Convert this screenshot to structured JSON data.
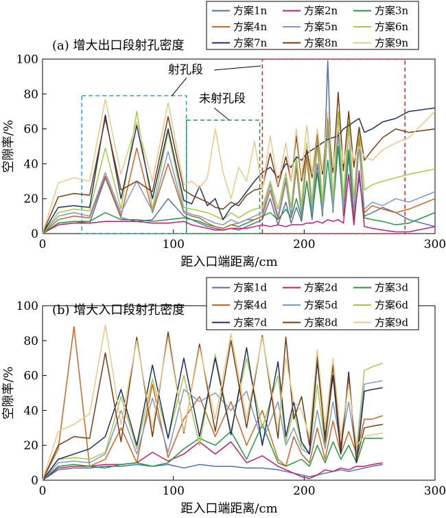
{
  "chart_data": [
    {
      "type": "line",
      "panel": "top",
      "title": "(a) 增大出口段射孔密度",
      "xlabel": "距入口端距离/cm",
      "ylabel": "空隙率/%",
      "xlim": [
        0,
        300
      ],
      "ylim": [
        0,
        100
      ],
      "xticks": [
        "0",
        "100",
        "200",
        "300"
      ],
      "yticks": [
        "0",
        "20",
        "40",
        "60",
        "80",
        "100"
      ],
      "grid": false,
      "legend_position": "top-right",
      "annotations": {
        "perf": "射孔段",
        "unperf": "未射孔段"
      },
      "x": [
        0,
        12,
        24,
        36,
        48,
        60,
        72,
        84,
        96,
        108,
        114,
        120,
        126,
        132,
        138,
        144,
        150,
        156,
        162,
        168,
        174,
        180,
        186,
        190,
        194,
        198,
        202,
        206,
        210,
        214,
        218,
        222,
        226,
        230,
        234,
        238,
        242,
        246,
        252,
        260,
        270,
        280,
        300
      ],
      "series": [
        {
          "name": "方案1n",
          "color": "#4e6fb0",
          "values": [
            0,
            6,
            7,
            6,
            32,
            9,
            7,
            8,
            20,
            10,
            8,
            6,
            4,
            3,
            2,
            3,
            2,
            4,
            6,
            8,
            20,
            5,
            18,
            6,
            15,
            7,
            30,
            8,
            40,
            10,
            99,
            12,
            60,
            10,
            45,
            8,
            32,
            10,
            12,
            15,
            12,
            8,
            4
          ]
        },
        {
          "name": "方案2n",
          "color": "#d0166e",
          "values": [
            0,
            5,
            6,
            6,
            7,
            7,
            7,
            6,
            6,
            7,
            5,
            4,
            3,
            2,
            2,
            3,
            3,
            3,
            4,
            5,
            4,
            5,
            4,
            5,
            5,
            5,
            6,
            6,
            7,
            6,
            8,
            7,
            8,
            6,
            34,
            5,
            36,
            4,
            3,
            2,
            1,
            1,
            4
          ]
        },
        {
          "name": "方案3n",
          "color": "#1f9a38",
          "values": [
            0,
            6,
            7,
            7,
            12,
            8,
            8,
            7,
            8,
            9,
            8,
            7,
            5,
            4,
            3,
            5,
            4,
            6,
            8,
            10,
            12,
            8,
            14,
            9,
            20,
            9,
            30,
            10,
            35,
            12,
            42,
            14,
            50,
            12,
            48,
            10,
            52,
            9,
            8,
            7,
            5,
            6,
            12
          ]
        },
        {
          "name": "方案4n",
          "color": "#d4621d",
          "values": [
            0,
            8,
            10,
            9,
            33,
            10,
            49,
            12,
            40,
            12,
            10,
            9,
            6,
            4,
            3,
            5,
            6,
            8,
            8,
            10,
            25,
            8,
            30,
            9,
            38,
            10,
            44,
            12,
            52,
            12,
            65,
            14,
            70,
            12,
            60,
            12,
            55,
            12,
            16,
            14,
            12,
            14,
            20
          ]
        },
        {
          "name": "方案5n",
          "color": "#7a98d6",
          "values": [
            0,
            10,
            12,
            10,
            35,
            12,
            30,
            13,
            47,
            13,
            11,
            10,
            8,
            6,
            5,
            8,
            6,
            8,
            10,
            12,
            28,
            10,
            32,
            10,
            42,
            11,
            50,
            12,
            56,
            13,
            60,
            14,
            66,
            14,
            60,
            13,
            50,
            14,
            18,
            16,
            20,
            18,
            24
          ]
        },
        {
          "name": "方案6n",
          "color": "#a5c945",
          "values": [
            0,
            12,
            14,
            13,
            49,
            14,
            70,
            14,
            58,
            15,
            14,
            13,
            12,
            10,
            8,
            12,
            9,
            12,
            14,
            15,
            30,
            14,
            35,
            15,
            44,
            16,
            52,
            18,
            58,
            18,
            66,
            20,
            70,
            20,
            64,
            20,
            60,
            25,
            28,
            30,
            32,
            34,
            37
          ]
        },
        {
          "name": "方案7n",
          "color": "#1c2f68",
          "values": [
            0,
            15,
            16,
            15,
            68,
            20,
            62,
            20,
            60,
            19,
            17,
            27,
            16,
            20,
            8,
            15,
            18,
            24,
            30,
            35,
            38,
            32,
            40,
            38,
            44,
            42,
            46,
            48,
            50,
            52,
            54,
            55,
            56,
            60,
            62,
            64,
            66,
            58,
            60,
            64,
            66,
            70,
            72
          ]
        },
        {
          "name": "方案8n",
          "color": "#7a3a10",
          "values": [
            0,
            21,
            23,
            22,
            66,
            25,
            30,
            24,
            67,
            25,
            22,
            20,
            18,
            15,
            14,
            18,
            16,
            22,
            25,
            26,
            46,
            27,
            44,
            30,
            56,
            30,
            48,
            32,
            58,
            34,
            68,
            35,
            81,
            36,
            70,
            38,
            61,
            42,
            48,
            55,
            60,
            58,
            60
          ]
        },
        {
          "name": "方案9n",
          "color": "#e8c88a",
          "values": [
            0,
            29,
            32,
            30,
            77,
            34,
            64,
            30,
            75,
            28,
            30,
            26,
            32,
            60,
            35,
            20,
            38,
            30,
            53,
            25,
            56,
            28,
            52,
            30,
            60,
            32,
            62,
            34,
            60,
            36,
            70,
            38,
            62,
            40,
            56,
            42,
            50,
            44,
            42,
            48,
            52,
            55,
            70
          ]
        }
      ]
    },
    {
      "type": "line",
      "panel": "bottom",
      "title": "(b) 增大入口段射孔密度",
      "xlabel": "距入口端距离/cm",
      "ylabel": "空隙率/%",
      "xlim": [
        0,
        300
      ],
      "ylim": [
        0,
        100
      ],
      "xticks": [
        "0",
        "100",
        "200",
        "300"
      ],
      "yticks": [
        "0",
        "20",
        "40",
        "60",
        "80",
        "100"
      ],
      "grid": false,
      "legend_position": "top-right",
      "x": [
        0,
        12,
        24,
        36,
        48,
        60,
        72,
        84,
        96,
        108,
        120,
        132,
        144,
        156,
        168,
        180,
        186,
        192,
        198,
        204,
        210,
        216,
        222,
        228,
        234,
        240,
        246,
        252,
        260
      ],
      "series": [
        {
          "name": "方案1d",
          "color": "#4e6fb0",
          "values": [
            0,
            6,
            7,
            7,
            8,
            8,
            9,
            8,
            9,
            7,
            9,
            8,
            8,
            7,
            7,
            6,
            5,
            4,
            3,
            2,
            3,
            4,
            5,
            6,
            5,
            6,
            7,
            8,
            9
          ]
        },
        {
          "name": "方案2d",
          "color": "#d0166e",
          "values": [
            0,
            7,
            8,
            8,
            9,
            9,
            10,
            16,
            11,
            15,
            22,
            15,
            22,
            10,
            14,
            8,
            6,
            4,
            2,
            1,
            3,
            6,
            5,
            7,
            6,
            8,
            8,
            9,
            10
          ]
        },
        {
          "name": "方案3d",
          "color": "#1f9a38",
          "values": [
            0,
            8,
            9,
            8,
            7,
            9,
            10,
            8,
            10,
            18,
            24,
            20,
            28,
            12,
            32,
            10,
            8,
            10,
            12,
            8,
            20,
            10,
            22,
            12,
            20,
            10,
            24,
            24,
            24
          ]
        },
        {
          "name": "方案4d",
          "color": "#d4621d",
          "values": [
            0,
            18,
            88,
            8,
            12,
            30,
            10,
            55,
            13,
            35,
            48,
            25,
            45,
            20,
            40,
            12,
            8,
            25,
            15,
            10,
            30,
            12,
            34,
            15,
            28,
            15,
            35,
            35,
            37
          ]
        },
        {
          "name": "方案5d",
          "color": "#7a98d6",
          "values": [
            0,
            10,
            11,
            10,
            15,
            40,
            15,
            47,
            16,
            52,
            45,
            50,
            40,
            51,
            22,
            45,
            20,
            30,
            18,
            15,
            40,
            18,
            45,
            20,
            45,
            15,
            55,
            56,
            57
          ]
        },
        {
          "name": "方案6d",
          "color": "#a5c945",
          "values": [
            0,
            12,
            13,
            12,
            16,
            48,
            18,
            58,
            24,
            60,
            20,
            72,
            28,
            70,
            30,
            60,
            22,
            40,
            20,
            16,
            55,
            20,
            60,
            18,
            56,
            18,
            63,
            65,
            67
          ]
        },
        {
          "name": "方案7d",
          "color": "#1c2f68",
          "values": [
            0,
            12,
            15,
            18,
            25,
            52,
            20,
            66,
            24,
            70,
            25,
            70,
            26,
            76,
            20,
            68,
            25,
            45,
            22,
            15,
            68,
            25,
            60,
            15,
            62,
            10,
            51,
            52,
            53
          ]
        },
        {
          "name": "方案8d",
          "color": "#7a3a10",
          "values": [
            0,
            20,
            25,
            24,
            73,
            22,
            82,
            25,
            85,
            27,
            78,
            28,
            80,
            30,
            83,
            24,
            82,
            35,
            48,
            20,
            72,
            22,
            66,
            18,
            60,
            12,
            30,
            31,
            32
          ]
        },
        {
          "name": "方案9d",
          "color": "#e8c88a",
          "values": [
            0,
            28,
            32,
            38,
            89,
            32,
            80,
            30,
            82,
            28,
            76,
            35,
            84,
            35,
            82,
            30,
            70,
            45,
            40,
            25,
            75,
            30,
            70,
            25,
            55,
            20,
            25,
            26,
            27
          ]
        }
      ]
    }
  ]
}
